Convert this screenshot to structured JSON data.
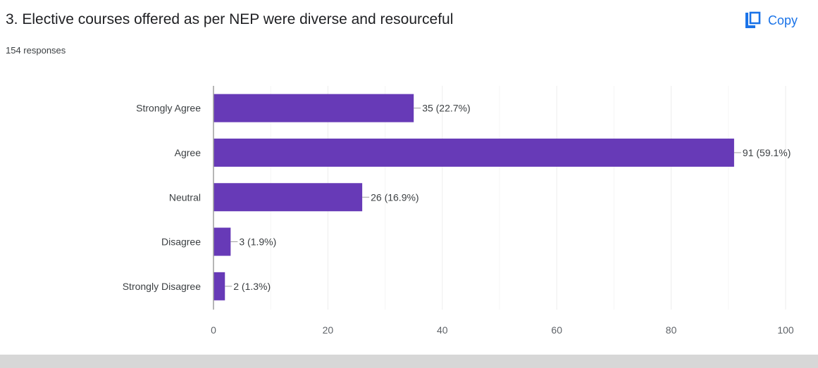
{
  "question": {
    "title": "3. Elective courses offered as per NEP were diverse and resourceful",
    "responses": "154 responses"
  },
  "toolbar": {
    "copy_label": "Copy",
    "copy_icon": "copy-icon"
  },
  "colors": {
    "bar": "#673ab7",
    "accent": "#1a73e8",
    "grid": "#ececec",
    "axis": "#9e9e9e"
  },
  "chart_data": {
    "type": "bar",
    "orientation": "horizontal",
    "categories": [
      "Strongly Agree",
      "Agree",
      "Neutral",
      "Disagree",
      "Strongly Disagree"
    ],
    "values": [
      35,
      91,
      26,
      3,
      2
    ],
    "data_labels": [
      "35 (22.7%)",
      "91 (59.1%)",
      "26 (16.9%)",
      "3 (1.9%)",
      "2 (1.3%)"
    ],
    "title": "",
    "xlabel": "",
    "ylabel": "",
    "xlim": [
      0,
      100
    ],
    "xticks": [
      0,
      20,
      40,
      60,
      80,
      100
    ],
    "grid": true,
    "legend": "none"
  }
}
